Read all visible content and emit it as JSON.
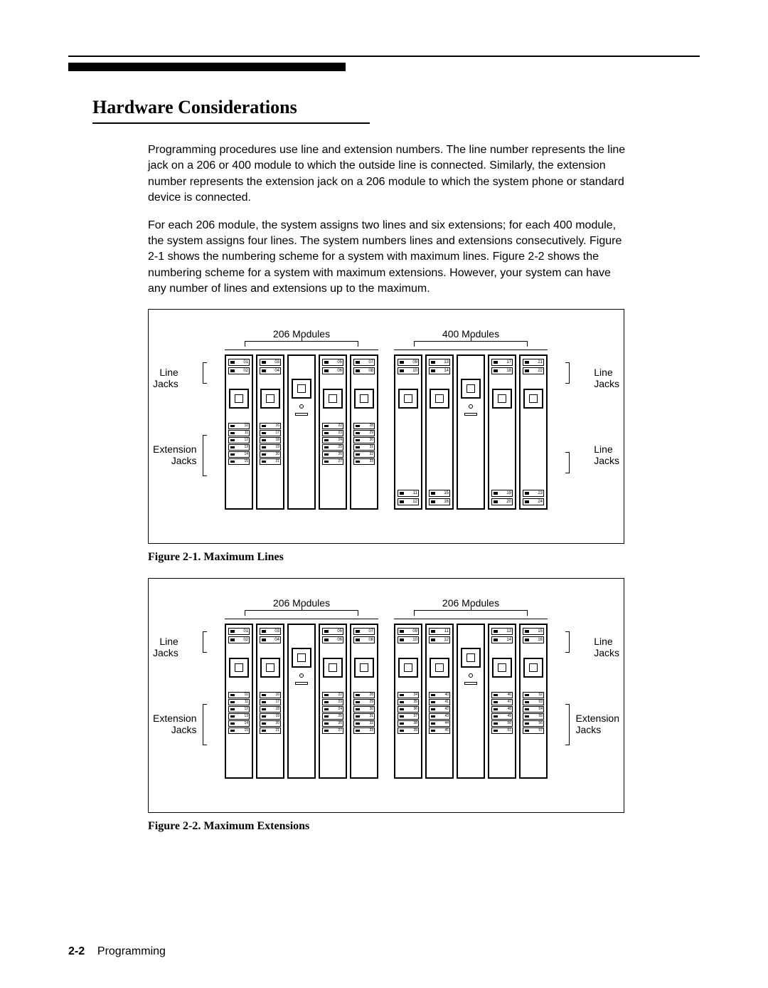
{
  "colors": {
    "text": "#000000",
    "bg": "#ffffff"
  },
  "heading": "Hardware Considerations",
  "para1": "Programming procedures use line and extension numbers. The line number represents the line jack on a 206 or 400 module to which the outside line is connected. Similarly, the extension number represents the extension jack on a 206 module to which the system phone or standard device is connected.",
  "para2": "For each 206 module, the system assigns two lines and six extensions; for each 400 module, the system assigns four lines. The system numbers lines and extensions consecutively. Figure 2-1 shows the numbering scheme for a system with maximum lines. Figure 2-2 shows the numbering scheme for a system with maximum extensions. However, your system can have any number of lines and extensions up to the maximum.",
  "fig1": {
    "caption": "Figure 2-1. Maximum Lines",
    "left_group_label": "206 Modules",
    "right_group_label": "400 Modules",
    "labels": {
      "line_jacks": "Line\nJacks",
      "ext_jacks": "Extension\nJacks",
      "right_top": "Line\nJacks",
      "right_bottom": "Line\nJacks"
    },
    "left_line_pairs": [
      [
        "01",
        "02"
      ],
      [
        "03",
        "04"
      ],
      null,
      [
        "05",
        "06"
      ],
      [
        "07",
        "08"
      ]
    ],
    "left_ext_stacks": [
      [
        "10",
        "11",
        "12",
        "13",
        "14",
        "15"
      ],
      [
        "16",
        "17",
        "18",
        "19",
        "20",
        "21"
      ],
      null,
      [
        "22",
        "23",
        "24",
        "25",
        "26",
        "27"
      ],
      [
        "28",
        "29",
        "30",
        "31",
        "32",
        "33"
      ]
    ],
    "right_line_pairs_top": [
      [
        "09",
        "10"
      ],
      [
        "13",
        "14"
      ],
      null,
      [
        "17",
        "18"
      ],
      [
        "21",
        "22"
      ]
    ],
    "right_line_pairs_bottom": [
      [
        "11",
        "12"
      ],
      [
        "15",
        "16"
      ],
      null,
      [
        "19",
        "20"
      ],
      [
        "23",
        "24"
      ]
    ]
  },
  "fig2": {
    "caption": "Figure 2-2. Maximum Extensions",
    "left_group_label": "206 Modules",
    "right_group_label": "206 Modules",
    "labels": {
      "line_jacks": "Line\nJacks",
      "ext_jacks": "Extension\nJacks",
      "right_top": "Line\nJacks",
      "right_bottom": "Extension\nJacks"
    },
    "left_line_pairs": [
      [
        "01",
        "02"
      ],
      [
        "03",
        "04"
      ],
      null,
      [
        "05",
        "06"
      ],
      [
        "07",
        "08"
      ]
    ],
    "left_ext_stacks": [
      [
        "10",
        "11",
        "12",
        "13",
        "14",
        "15"
      ],
      [
        "16",
        "17",
        "18",
        "19",
        "20",
        "21"
      ],
      null,
      [
        "22",
        "23",
        "24",
        "25",
        "26",
        "27"
      ],
      [
        "28",
        "29",
        "30",
        "31",
        "32",
        "33"
      ]
    ],
    "right_line_pairs": [
      [
        "09",
        "10"
      ],
      [
        "11",
        "12"
      ],
      null,
      [
        "13",
        "14"
      ],
      [
        "15",
        "16"
      ]
    ],
    "right_ext_stacks": [
      [
        "34",
        "35",
        "36",
        "37",
        "38",
        "39"
      ],
      [
        "40",
        "41",
        "42",
        "43",
        "44",
        "45"
      ],
      null,
      [
        "46",
        "47",
        "48",
        "49",
        "50",
        "51"
      ],
      [
        "52",
        "53",
        "54",
        "55",
        "56",
        "57"
      ]
    ]
  },
  "footer": {
    "page_num": "2-2",
    "section": "Programming"
  }
}
